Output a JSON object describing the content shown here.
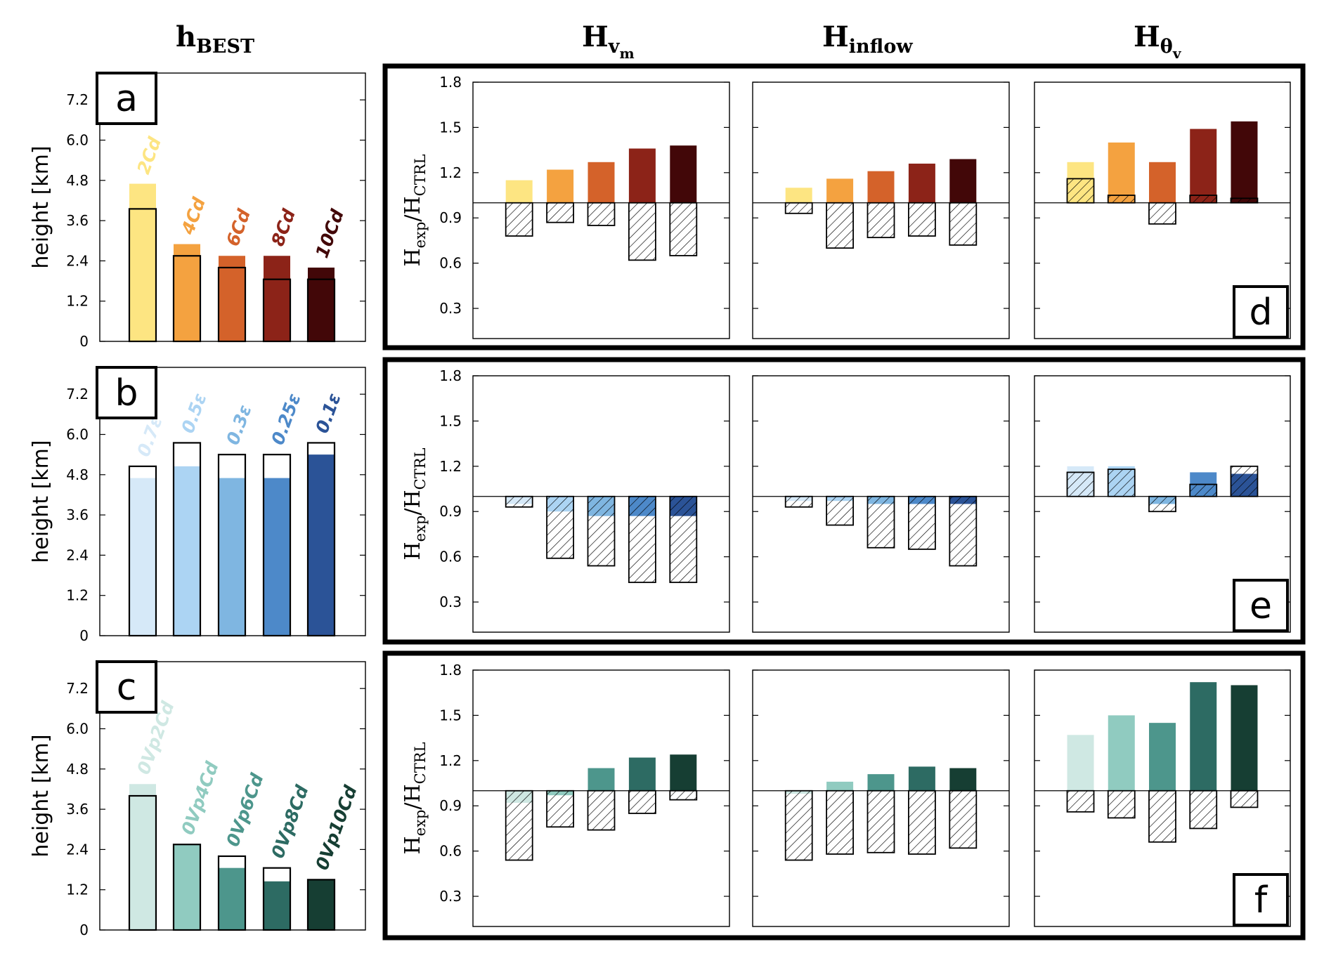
{
  "column_titles": {
    "hbest": {
      "main": "h",
      "sub": "BEST"
    },
    "hvm": {
      "main": "H",
      "sub": "v",
      "subsub": "m"
    },
    "hinflow": {
      "main": "H",
      "sub": "inflow"
    },
    "htheta": {
      "main": "H",
      "sub": "θ",
      "subsub": "v"
    }
  },
  "left_ylabel": "height  [km]",
  "right_ylabel": {
    "main1": "H",
    "sub1": "exp",
    "slash": "/H",
    "sub2": "CTRL"
  },
  "chart_data": {
    "type": "bar",
    "left_panels": [
      {
        "letter": "a",
        "ylim": [
          0,
          8
        ],
        "yticks": [
          "0",
          "1.2",
          "2.4",
          "3.6",
          "4.8",
          "6.0",
          "7.2"
        ],
        "categories": [
          "2Cd",
          "4Cd",
          "6Cd",
          "8Cd",
          "10Cd"
        ],
        "colors": [
          "#fde582",
          "#f4a240",
          "#d4622a",
          "#8c2318",
          "#420708"
        ],
        "filled_values": [
          4.7,
          2.9,
          2.55,
          2.55,
          2.2
        ],
        "outline_values": [
          3.95,
          2.55,
          2.2,
          1.85,
          1.85
        ]
      },
      {
        "letter": "b",
        "ylim": [
          0,
          8
        ],
        "yticks": [
          "0",
          "1.2",
          "2.4",
          "3.6",
          "4.8",
          "6.0",
          "7.2"
        ],
        "categories": [
          "0.7ε",
          "0.5ε",
          "0.3ε",
          "0.25ε",
          "0.1ε"
        ],
        "colors": [
          "#d6e9f8",
          "#acd4f3",
          "#7fb6e1",
          "#4d89c9",
          "#2b5397"
        ],
        "filled_values": [
          4.7,
          5.05,
          4.7,
          4.7,
          5.4
        ],
        "outline_values": [
          5.05,
          5.75,
          5.4,
          5.4,
          5.75
        ]
      },
      {
        "letter": "c",
        "ylim": [
          0,
          8
        ],
        "yticks": [
          "0",
          "1.2",
          "2.4",
          "3.6",
          "4.8",
          "6.0",
          "7.2"
        ],
        "categories": [
          "0Vp2Cd",
          "0Vp4Cd",
          "0Vp6Cd",
          "0Vp8Cd",
          "0Vp10Cd"
        ],
        "colors": [
          "#cfe8e3",
          "#90cbc0",
          "#4d968c",
          "#2d6b63",
          "#163e33"
        ],
        "filled_values": [
          4.35,
          2.55,
          1.85,
          1.45,
          1.5
        ],
        "outline_values": [
          4.0,
          2.55,
          2.2,
          1.85,
          1.5
        ]
      }
    ],
    "right_panels": [
      {
        "letter": "d",
        "ylim": [
          0.1,
          1.8
        ],
        "yticks": [
          "0.3",
          "0.6",
          "0.9",
          "1.2",
          "1.5",
          "1.8"
        ],
        "baseline": 1.0,
        "colors": [
          "#fde582",
          "#f4a240",
          "#d4622a",
          "#8c2318",
          "#420708"
        ],
        "subplots": [
          {
            "name": "H_vm",
            "positive": [
              1.15,
              1.22,
              1.27,
              1.36,
              1.38
            ],
            "negative": [
              0.78,
              0.87,
              0.85,
              0.62,
              0.65
            ]
          },
          {
            "name": "H_inflow",
            "positive": [
              1.1,
              1.16,
              1.21,
              1.26,
              1.29
            ],
            "negative": [
              0.93,
              0.7,
              0.77,
              0.78,
              0.72
            ]
          },
          {
            "name": "H_theta_v",
            "positive": [
              1.27,
              1.4,
              1.27,
              1.49,
              1.54
            ],
            "negative": [
              1.16,
              1.05,
              0.86,
              1.05,
              1.03
            ]
          }
        ]
      },
      {
        "letter": "e",
        "ylim": [
          0.1,
          1.8
        ],
        "yticks": [
          "0.3",
          "0.6",
          "0.9",
          "1.2",
          "1.5",
          "1.8"
        ],
        "baseline": 1.0,
        "colors": [
          "#d6e9f8",
          "#acd4f3",
          "#7fb6e1",
          "#4d89c9",
          "#2b5397"
        ],
        "subplots": [
          {
            "name": "H_vm",
            "positive": [
              0.95,
              0.9,
              0.87,
              0.87,
              0.87
            ],
            "negative": [
              0.93,
              0.59,
              0.54,
              0.43,
              0.43
            ]
          },
          {
            "name": "H_inflow",
            "positive": [
              0.97,
              0.97,
              0.95,
              0.95,
              0.95
            ],
            "negative": [
              0.93,
              0.81,
              0.66,
              0.65,
              0.54
            ]
          },
          {
            "name": "H_theta_v",
            "positive": [
              1.2,
              1.2,
              0.95,
              1.16,
              1.15
            ],
            "negative": [
              1.16,
              1.18,
              0.9,
              1.08,
              1.2
            ]
          }
        ]
      },
      {
        "letter": "f",
        "ylim": [
          0.1,
          1.8
        ],
        "yticks": [
          "0.3",
          "0.6",
          "0.9",
          "1.2",
          "1.5",
          "1.8"
        ],
        "baseline": 1.0,
        "colors": [
          "#cfe8e3",
          "#90cbc0",
          "#4d968c",
          "#2d6b63",
          "#163e33"
        ],
        "subplots": [
          {
            "name": "H_vm",
            "positive": [
              0.92,
              0.97,
              1.15,
              1.22,
              1.24
            ],
            "negative": [
              0.54,
              0.76,
              0.74,
              0.85,
              0.94
            ]
          },
          {
            "name": "H_inflow",
            "positive": [
              0.98,
              1.06,
              1.11,
              1.16,
              1.15
            ],
            "negative": [
              0.54,
              0.58,
              0.59,
              0.58,
              0.62
            ]
          },
          {
            "name": "H_theta_v",
            "positive": [
              1.37,
              1.5,
              1.45,
              1.72,
              1.7
            ],
            "negative": [
              0.86,
              0.82,
              0.66,
              0.75,
              0.89
            ]
          }
        ]
      }
    ]
  }
}
